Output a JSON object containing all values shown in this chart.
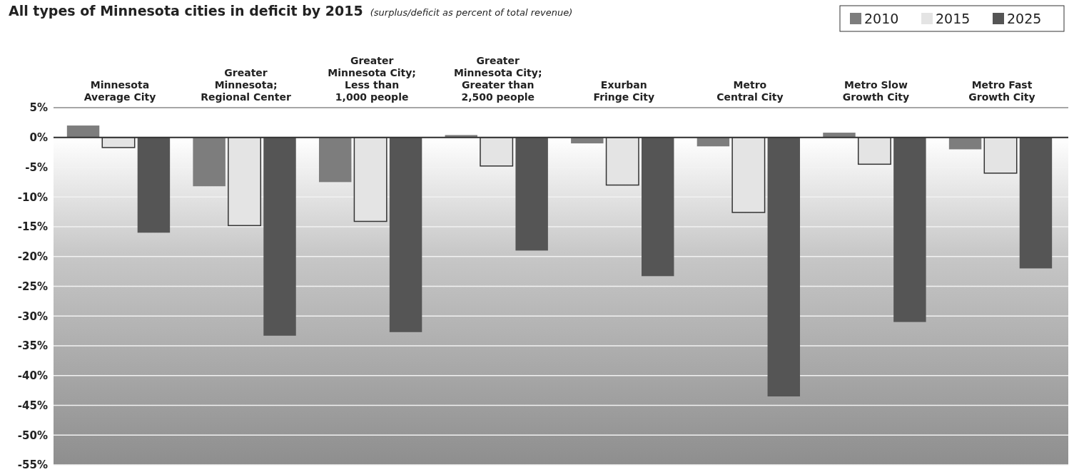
{
  "chart_data": {
    "type": "bar",
    "title": "All types of Minnesota cities in deficit by 2015",
    "subtitle": "(surplus/deficit as percent of total revenue)",
    "categories": [
      "Minnesota\nAverage City",
      "Greater\nMinnesota;\nRegional Center",
      "Greater\nMinnesota City;\nLess than\n1,000 people",
      "Greater\nMinnesota City;\nGreater than\n2,500 people",
      "Exurban\nFringe City",
      "Metro\nCentral City",
      "Metro Slow\nGrowth City",
      "Metro Fast\nGrowth City"
    ],
    "series": [
      {
        "name": "2010",
        "color": "#7d7d7d",
        "values": [
          2.0,
          -8.2,
          -7.5,
          0.4,
          -1.0,
          -1.5,
          0.8,
          -2.0
        ]
      },
      {
        "name": "2015",
        "color": "#e4e4e4",
        "values": [
          -1.7,
          -14.8,
          -14.1,
          -4.8,
          -8.0,
          -12.6,
          -4.5,
          -6.0
        ]
      },
      {
        "name": "2025",
        "color": "#555555",
        "values": [
          -16.0,
          -33.3,
          -32.7,
          -19.0,
          -23.3,
          -43.5,
          -31.0,
          -22.0
        ]
      }
    ],
    "ylim": [
      -55,
      5
    ],
    "yticks": [
      {
        "value": 5,
        "label": "5%"
      },
      {
        "value": 0,
        "label": "0%"
      },
      {
        "value": -5,
        "label": "-5%"
      },
      {
        "value": -10,
        "label": "-10%"
      },
      {
        "value": -15,
        "label": "-15%"
      },
      {
        "value": -20,
        "label": "-20%"
      },
      {
        "value": -25,
        "label": "-25%"
      },
      {
        "value": -30,
        "label": "-30%"
      },
      {
        "value": -35,
        "label": "-35%"
      },
      {
        "value": -40,
        "label": "-40%"
      },
      {
        "value": -45,
        "label": "-45%"
      },
      {
        "value": -50,
        "label": "-50%"
      },
      {
        "value": -55,
        "label": "-55%"
      }
    ],
    "grid": "y",
    "legend": "top right"
  }
}
